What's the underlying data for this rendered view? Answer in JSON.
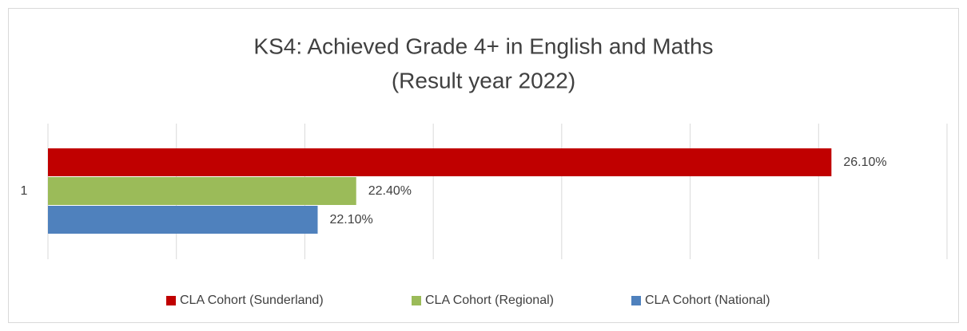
{
  "chart_data": {
    "type": "hbar",
    "title": "KS4: Achieved Grade 4+ in English and Maths",
    "subtitle": "(Result year 2022)",
    "categories": [
      "1"
    ],
    "series": [
      {
        "name": "CLA Cohort (Sunderland)",
        "color": "#c00000",
        "values": [
          26.1
        ],
        "value_labels": [
          "26.10%"
        ]
      },
      {
        "name": "CLA Cohort (Regional)",
        "color": "#9bbb59",
        "values": [
          22.4
        ],
        "value_labels": [
          "22.40%"
        ]
      },
      {
        "name": "CLA Cohort (National)",
        "color": "#4f81bd",
        "values": [
          22.1
        ],
        "value_labels": [
          "22.10%"
        ]
      }
    ],
    "xlim": [
      20,
      27
    ],
    "xticks": [
      20,
      21,
      22,
      23,
      24,
      25,
      26,
      27
    ],
    "grid": true,
    "legend": "bottom"
  }
}
